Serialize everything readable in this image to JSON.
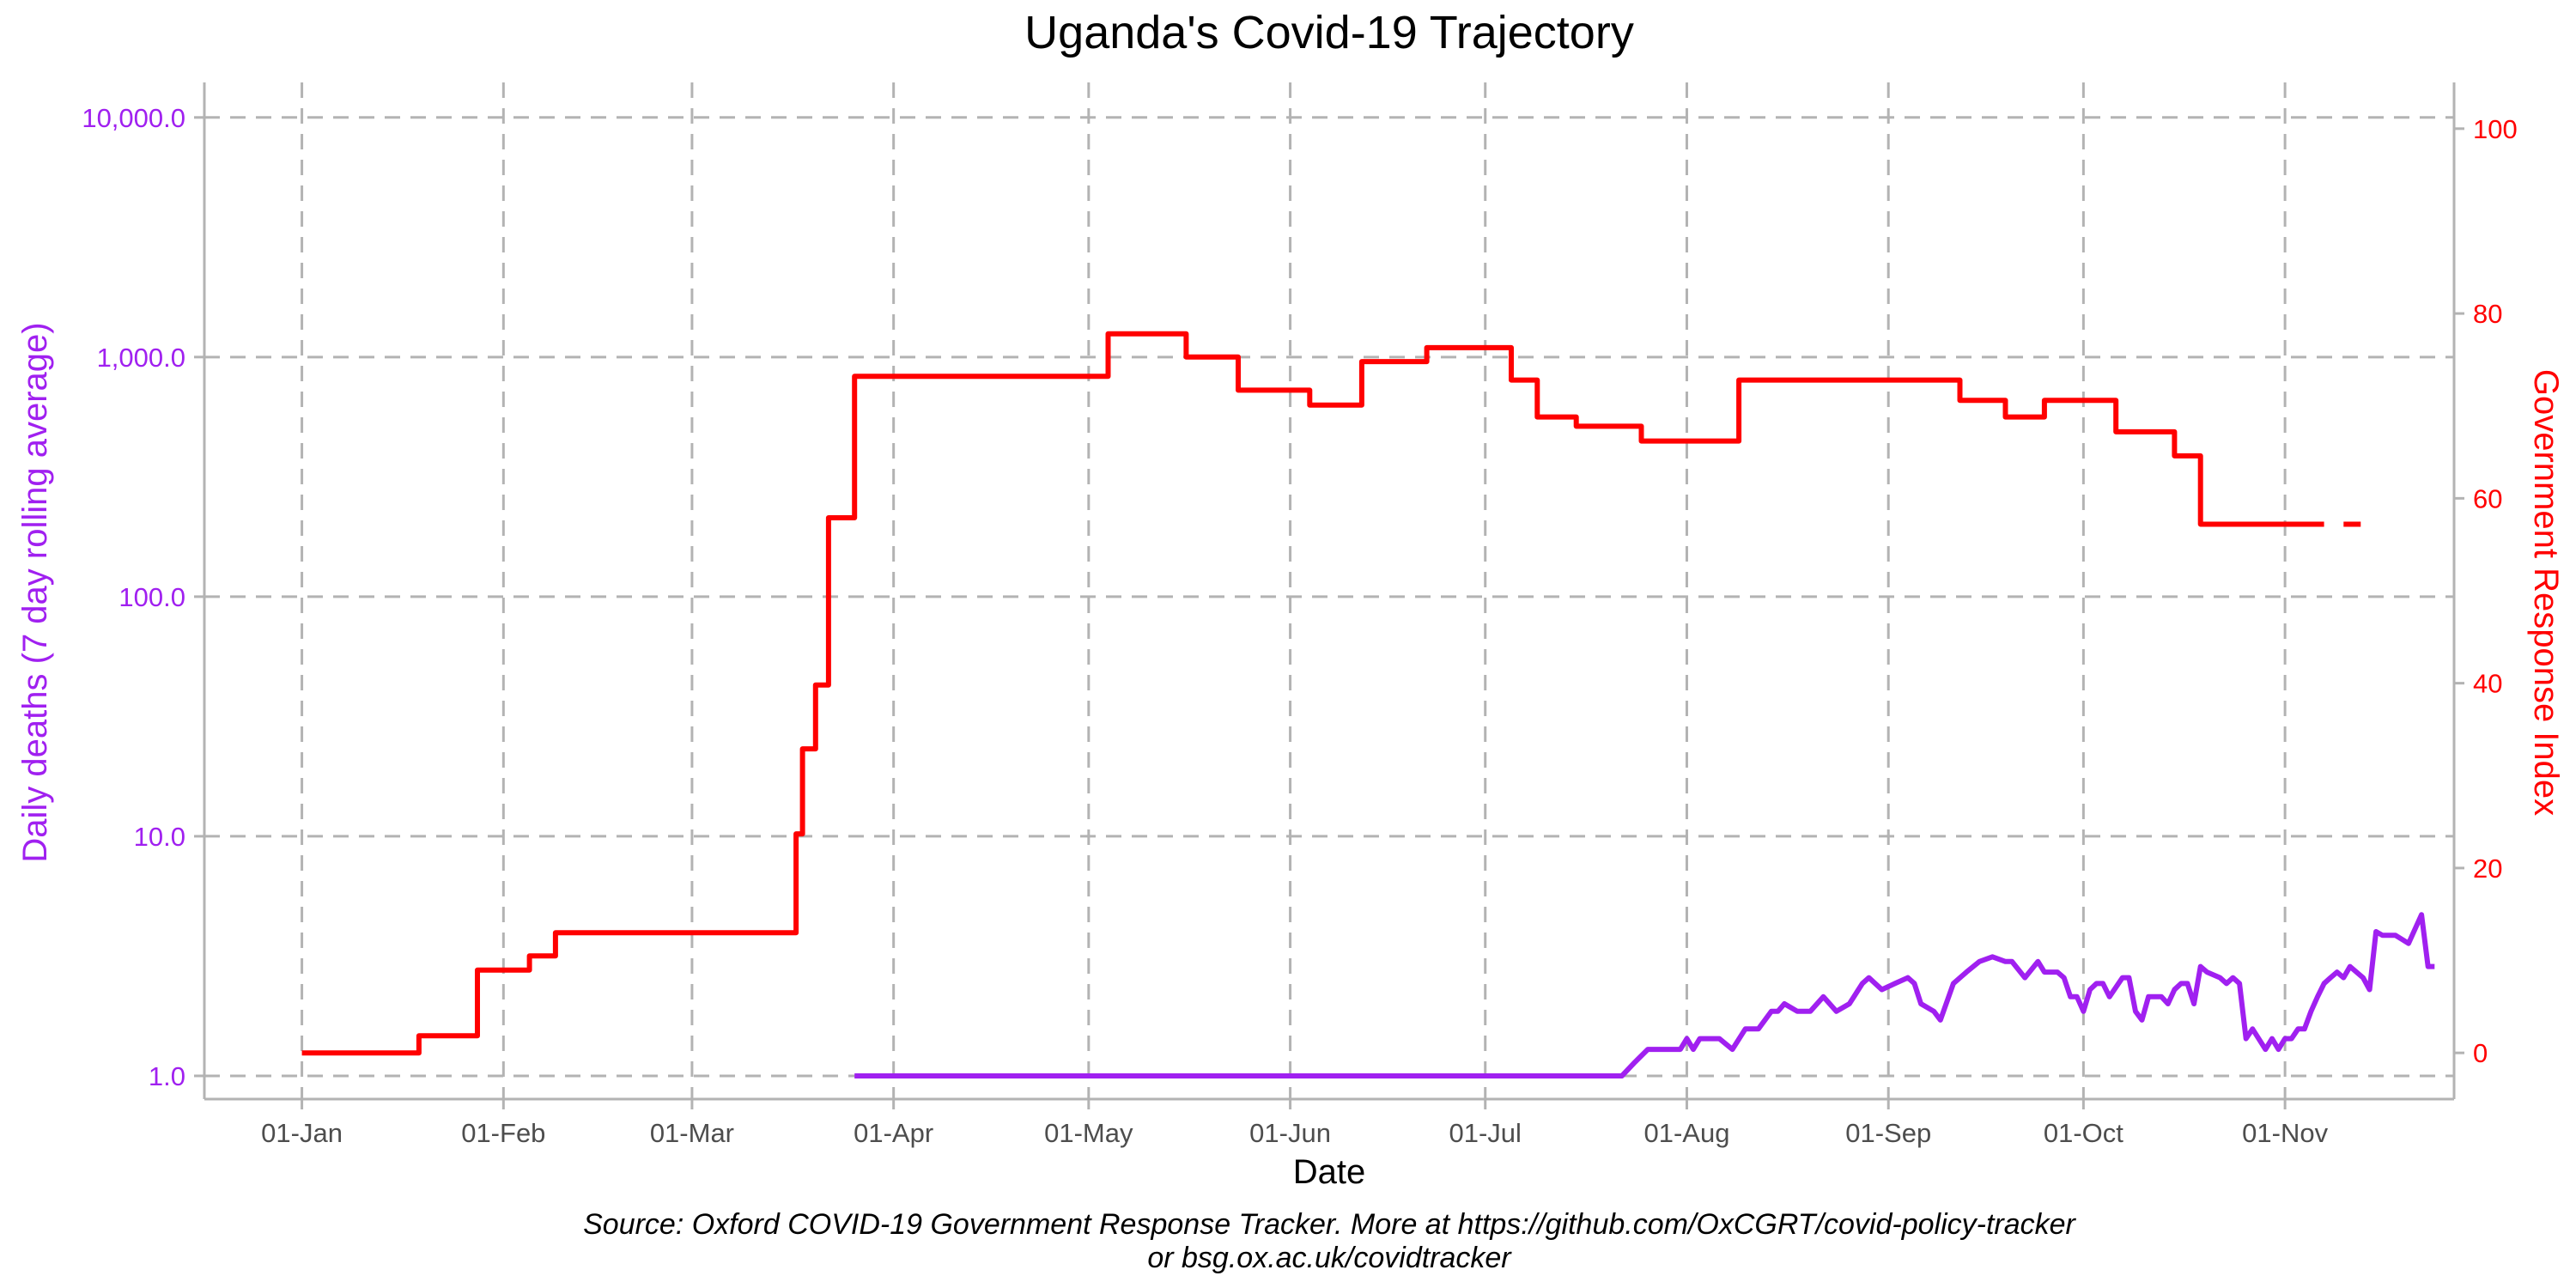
{
  "chart_data": {
    "type": "line",
    "title": "Uganda's Covid-19 Trajectory",
    "xlabel": "Date",
    "ylabel_left": "Daily deaths (7 day rolling average)",
    "ylabel_right": "Government Response Index",
    "caption_line1": "Source: Oxford COVID-19 Government Response Tracker. More at https://github.com/OxCGRT/covid-policy-tracker",
    "caption_line2": "or bsg.ox.ac.uk/covidtracker",
    "x_type": "date",
    "x_range": [
      "2019-12-17",
      "2020-11-27"
    ],
    "x_ticks": [
      {
        "date": "2020-01-01",
        "label": "01-Jan"
      },
      {
        "date": "2020-02-01",
        "label": "01-Feb"
      },
      {
        "date": "2020-03-01",
        "label": "01-Mar"
      },
      {
        "date": "2020-04-01",
        "label": "01-Apr"
      },
      {
        "date": "2020-05-01",
        "label": "01-May"
      },
      {
        "date": "2020-06-01",
        "label": "01-Jun"
      },
      {
        "date": "2020-07-01",
        "label": "01-Jul"
      },
      {
        "date": "2020-08-01",
        "label": "01-Aug"
      },
      {
        "date": "2020-09-01",
        "label": "01-Sep"
      },
      {
        "date": "2020-10-01",
        "label": "01-Oct"
      },
      {
        "date": "2020-11-01",
        "label": "01-Nov"
      }
    ],
    "y_left": {
      "scale": "log10",
      "range": [
        0.8,
        14000
      ],
      "ticks": [
        {
          "value": 1,
          "label": "1.0"
        },
        {
          "value": 10,
          "label": "10.0"
        },
        {
          "value": 100,
          "label": "100.0"
        },
        {
          "value": 1000,
          "label": "1,000.0"
        },
        {
          "value": 10000,
          "label": "10,000.0"
        }
      ],
      "color": "#a020f0"
    },
    "y_right": {
      "scale": "linear",
      "range": [
        -5,
        105
      ],
      "ticks": [
        {
          "value": 0,
          "label": "0"
        },
        {
          "value": 20,
          "label": "20"
        },
        {
          "value": 40,
          "label": "40"
        },
        {
          "value": 60,
          "label": "60"
        },
        {
          "value": 80,
          "label": "80"
        },
        {
          "value": 100,
          "label": "100"
        }
      ],
      "color": "#ff0000"
    },
    "grid": true,
    "legend": "none",
    "series": [
      {
        "axis": "right",
        "color": "#ff0000",
        "style": "step",
        "points": [
          [
            "2020-01-01",
            0
          ],
          [
            "2020-01-19",
            1.85
          ],
          [
            "2020-01-28",
            8.95
          ],
          [
            "2020-02-05",
            10.5
          ],
          [
            "2020-02-09",
            13.0
          ],
          [
            "2020-03-17",
            23.7
          ],
          [
            "2020-03-18",
            32.9
          ],
          [
            "2020-03-20",
            39.8
          ],
          [
            "2020-03-22",
            57.9
          ],
          [
            "2020-03-26",
            73.2
          ],
          [
            "2020-05-04",
            77.8
          ],
          [
            "2020-05-16",
            75.3
          ],
          [
            "2020-05-24",
            71.7
          ],
          [
            "2020-06-04",
            70.1
          ],
          [
            "2020-06-12",
            74.8
          ],
          [
            "2020-06-22",
            76.3
          ],
          [
            "2020-07-05",
            72.8
          ],
          [
            "2020-07-09",
            68.8
          ],
          [
            "2020-07-15",
            67.8
          ],
          [
            "2020-07-25",
            66.2
          ],
          [
            "2020-08-09",
            72.8
          ],
          [
            "2020-09-12",
            70.6
          ],
          [
            "2020-09-19",
            68.8
          ],
          [
            "2020-09-25",
            70.6
          ],
          [
            "2020-10-06",
            67.2
          ],
          [
            "2020-10-15",
            64.6
          ],
          [
            "2020-10-19",
            57.2
          ],
          [
            "2020-11-07",
            57.2
          ]
        ],
        "projected": [
          [
            "2020-11-10",
            57.2
          ],
          [
            "2020-11-14",
            57.2
          ]
        ]
      },
      {
        "axis": "left",
        "color": "#a020f0",
        "style": "line",
        "points": [
          [
            "2020-03-26",
            1.0
          ],
          [
            "2020-07-22",
            1.0
          ],
          [
            "2020-07-24",
            1.14
          ],
          [
            "2020-07-26",
            1.29
          ],
          [
            "2020-07-28",
            1.29
          ],
          [
            "2020-07-31",
            1.29
          ],
          [
            "2020-08-01",
            1.43
          ],
          [
            "2020-08-02",
            1.29
          ],
          [
            "2020-08-03",
            1.43
          ],
          [
            "2020-08-06",
            1.43
          ],
          [
            "2020-08-08",
            1.29
          ],
          [
            "2020-08-10",
            1.57
          ],
          [
            "2020-08-12",
            1.57
          ],
          [
            "2020-08-14",
            1.86
          ],
          [
            "2020-08-15",
            1.86
          ],
          [
            "2020-08-16",
            2.0
          ],
          [
            "2020-08-18",
            1.86
          ],
          [
            "2020-08-20",
            1.86
          ],
          [
            "2020-08-22",
            2.14
          ],
          [
            "2020-08-24",
            1.86
          ],
          [
            "2020-08-26",
            2.0
          ],
          [
            "2020-08-28",
            2.43
          ],
          [
            "2020-08-29",
            2.57
          ],
          [
            "2020-08-31",
            2.29
          ],
          [
            "2020-09-02",
            2.43
          ],
          [
            "2020-09-04",
            2.57
          ],
          [
            "2020-09-05",
            2.43
          ],
          [
            "2020-09-06",
            2.0
          ],
          [
            "2020-09-08",
            1.86
          ],
          [
            "2020-09-09",
            1.71
          ],
          [
            "2020-09-11",
            2.43
          ],
          [
            "2020-09-13",
            2.71
          ],
          [
            "2020-09-15",
            3.0
          ],
          [
            "2020-09-17",
            3.14
          ],
          [
            "2020-09-19",
            3.0
          ],
          [
            "2020-09-20",
            3.0
          ],
          [
            "2020-09-22",
            2.57
          ],
          [
            "2020-09-24",
            3.0
          ],
          [
            "2020-09-25",
            2.71
          ],
          [
            "2020-09-27",
            2.71
          ],
          [
            "2020-09-28",
            2.57
          ],
          [
            "2020-09-29",
            2.14
          ],
          [
            "2020-09-30",
            2.14
          ],
          [
            "2020-10-01",
            1.86
          ],
          [
            "2020-10-02",
            2.29
          ],
          [
            "2020-10-03",
            2.43
          ],
          [
            "2020-10-04",
            2.43
          ],
          [
            "2020-10-05",
            2.14
          ],
          [
            "2020-10-07",
            2.57
          ],
          [
            "2020-10-08",
            2.57
          ],
          [
            "2020-10-09",
            1.86
          ],
          [
            "2020-10-10",
            1.71
          ],
          [
            "2020-10-11",
            2.14
          ],
          [
            "2020-10-13",
            2.14
          ],
          [
            "2020-10-14",
            2.0
          ],
          [
            "2020-10-15",
            2.29
          ],
          [
            "2020-10-16",
            2.43
          ],
          [
            "2020-10-17",
            2.43
          ],
          [
            "2020-10-18",
            2.0
          ],
          [
            "2020-10-19",
            2.86
          ],
          [
            "2020-10-20",
            2.71
          ],
          [
            "2020-10-22",
            2.57
          ],
          [
            "2020-10-23",
            2.43
          ],
          [
            "2020-10-24",
            2.57
          ],
          [
            "2020-10-25",
            2.43
          ],
          [
            "2020-10-26",
            1.43
          ],
          [
            "2020-10-27",
            1.57
          ],
          [
            "2020-10-29",
            1.29
          ],
          [
            "2020-10-30",
            1.43
          ],
          [
            "2020-10-31",
            1.29
          ],
          [
            "2020-11-01",
            1.43
          ],
          [
            "2020-11-02",
            1.43
          ],
          [
            "2020-11-03",
            1.57
          ],
          [
            "2020-11-04",
            1.57
          ],
          [
            "2020-11-05",
            1.86
          ],
          [
            "2020-11-06",
            2.14
          ],
          [
            "2020-11-07",
            2.43
          ],
          [
            "2020-11-08",
            2.57
          ],
          [
            "2020-11-09",
            2.71
          ],
          [
            "2020-11-10",
            2.57
          ],
          [
            "2020-11-11",
            2.86
          ],
          [
            "2020-11-12",
            2.71
          ],
          [
            "2020-11-13",
            2.57
          ],
          [
            "2020-11-14",
            2.29
          ],
          [
            "2020-11-15",
            4.0
          ],
          [
            "2020-11-16",
            3.86
          ],
          [
            "2020-11-18",
            3.86
          ],
          [
            "2020-11-20",
            3.57
          ],
          [
            "2020-11-22",
            4.71
          ],
          [
            "2020-11-23",
            2.86
          ],
          [
            "2020-11-24",
            2.86
          ]
        ]
      }
    ]
  }
}
